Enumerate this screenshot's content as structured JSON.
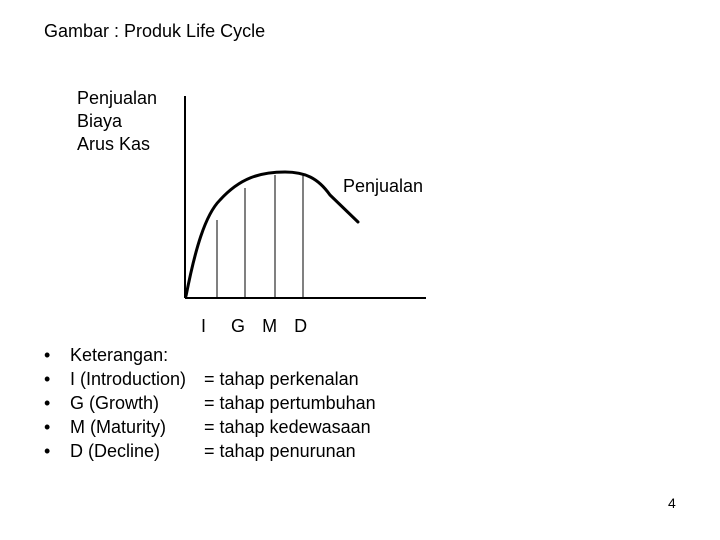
{
  "title": "Gambar : Produk Life Cycle",
  "y_axis_labels": [
    "Penjualan",
    "Biaya",
    "Arus Kas"
  ],
  "curve_label": "Penjualan",
  "stages": [
    "I",
    "G",
    "M",
    "D"
  ],
  "legend": {
    "bullet": "•",
    "heading": "Keterangan:",
    "items": [
      {
        "term": "I (Introduction)",
        "desc": "= tahap perkenalan"
      },
      {
        "term": "G (Growth)",
        "desc": "= tahap pertumbuhan"
      },
      {
        "term": "M (Maturity)",
        "desc": "= tahap kedewasaan"
      },
      {
        "term": "D (Decline)",
        "desc": "= tahap penurunan"
      }
    ]
  },
  "page_number": "4"
}
